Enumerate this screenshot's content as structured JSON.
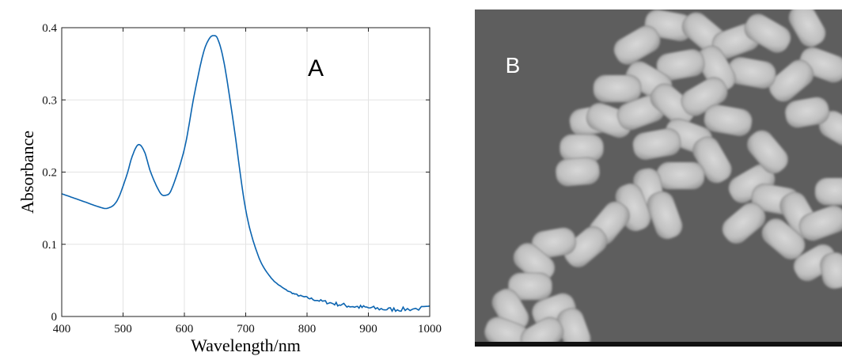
{
  "panel_a": {
    "label": "A"
  },
  "panel_b": {
    "label": "B",
    "colors": {
      "background": "#5e5e5e",
      "particle": "#c4c4c4",
      "scale_bar": "#111111"
    }
  },
  "chart_data": {
    "type": "line",
    "xlabel": "Wavelength/nm",
    "ylabel": "Absorbance",
    "xlim": [
      400,
      1000
    ],
    "ylim": [
      0,
      0.4
    ],
    "xticks": [
      "400",
      "500",
      "600",
      "700",
      "800",
      "900",
      "1000"
    ],
    "yticks": [
      "0",
      "0.1",
      "0.2",
      "0.3",
      "0.4"
    ],
    "grid": true,
    "series": [
      {
        "color": "#0b64b0",
        "x": [
          400,
          420,
          440,
          460,
          475,
          490,
          505,
          515,
          525,
          535,
          545,
          560,
          570,
          580,
          600,
          615,
          630,
          640,
          648,
          655,
          665,
          680,
          700,
          720,
          740,
          760,
          780,
          800,
          825,
          850,
          875,
          900,
          930,
          960,
          1000
        ],
        "y": [
          0.17,
          0.164,
          0.158,
          0.152,
          0.15,
          0.16,
          0.193,
          0.222,
          0.238,
          0.228,
          0.2,
          0.172,
          0.168,
          0.178,
          0.232,
          0.302,
          0.362,
          0.384,
          0.389,
          0.383,
          0.35,
          0.268,
          0.148,
          0.085,
          0.055,
          0.04,
          0.031,
          0.026,
          0.021,
          0.017,
          0.014,
          0.012,
          0.01,
          0.01,
          0.012
        ]
      }
    ]
  }
}
